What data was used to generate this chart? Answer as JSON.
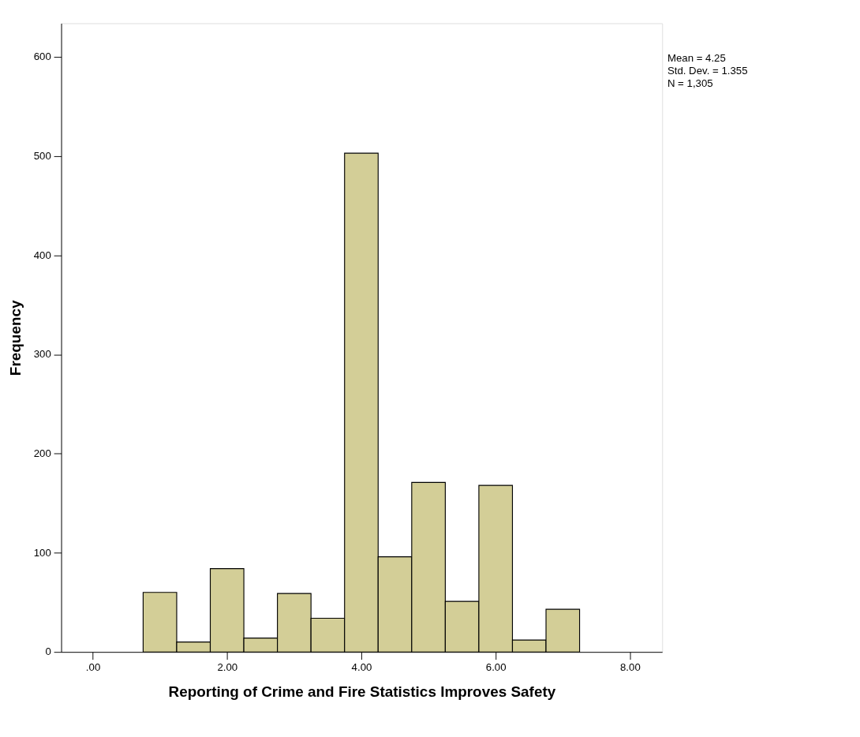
{
  "chart_data": {
    "type": "histogram",
    "xlabel": "Reporting of Crime and Fire Statistics Improves Safety",
    "ylabel": "Frequency",
    "bins": [
      0.75,
      1.25,
      1.75,
      2.25,
      2.75,
      3.25,
      3.75,
      4.25,
      4.75,
      5.25,
      5.75,
      6.25,
      6.75,
      7.25
    ],
    "values": [
      60,
      10,
      84,
      14,
      59,
      34,
      503,
      96,
      171,
      51,
      168,
      12,
      43
    ],
    "color": "#d3ce97",
    "xlim": [
      -0.47,
      8.48
    ],
    "xticks": [
      {
        "value": 0,
        "label": ".00"
      },
      {
        "value": 2,
        "label": "2.00"
      },
      {
        "value": 4,
        "label": "4.00"
      },
      {
        "value": 6,
        "label": "6.00"
      },
      {
        "value": 8,
        "label": "8.00"
      }
    ],
    "ylim": [
      0,
      634
    ],
    "yticks": [
      0,
      100,
      200,
      300,
      400,
      500,
      600
    ],
    "grid": false,
    "annotations": [
      "Mean = 4.25",
      "Std. Dev. = 1.355",
      "N = 1,305"
    ]
  }
}
